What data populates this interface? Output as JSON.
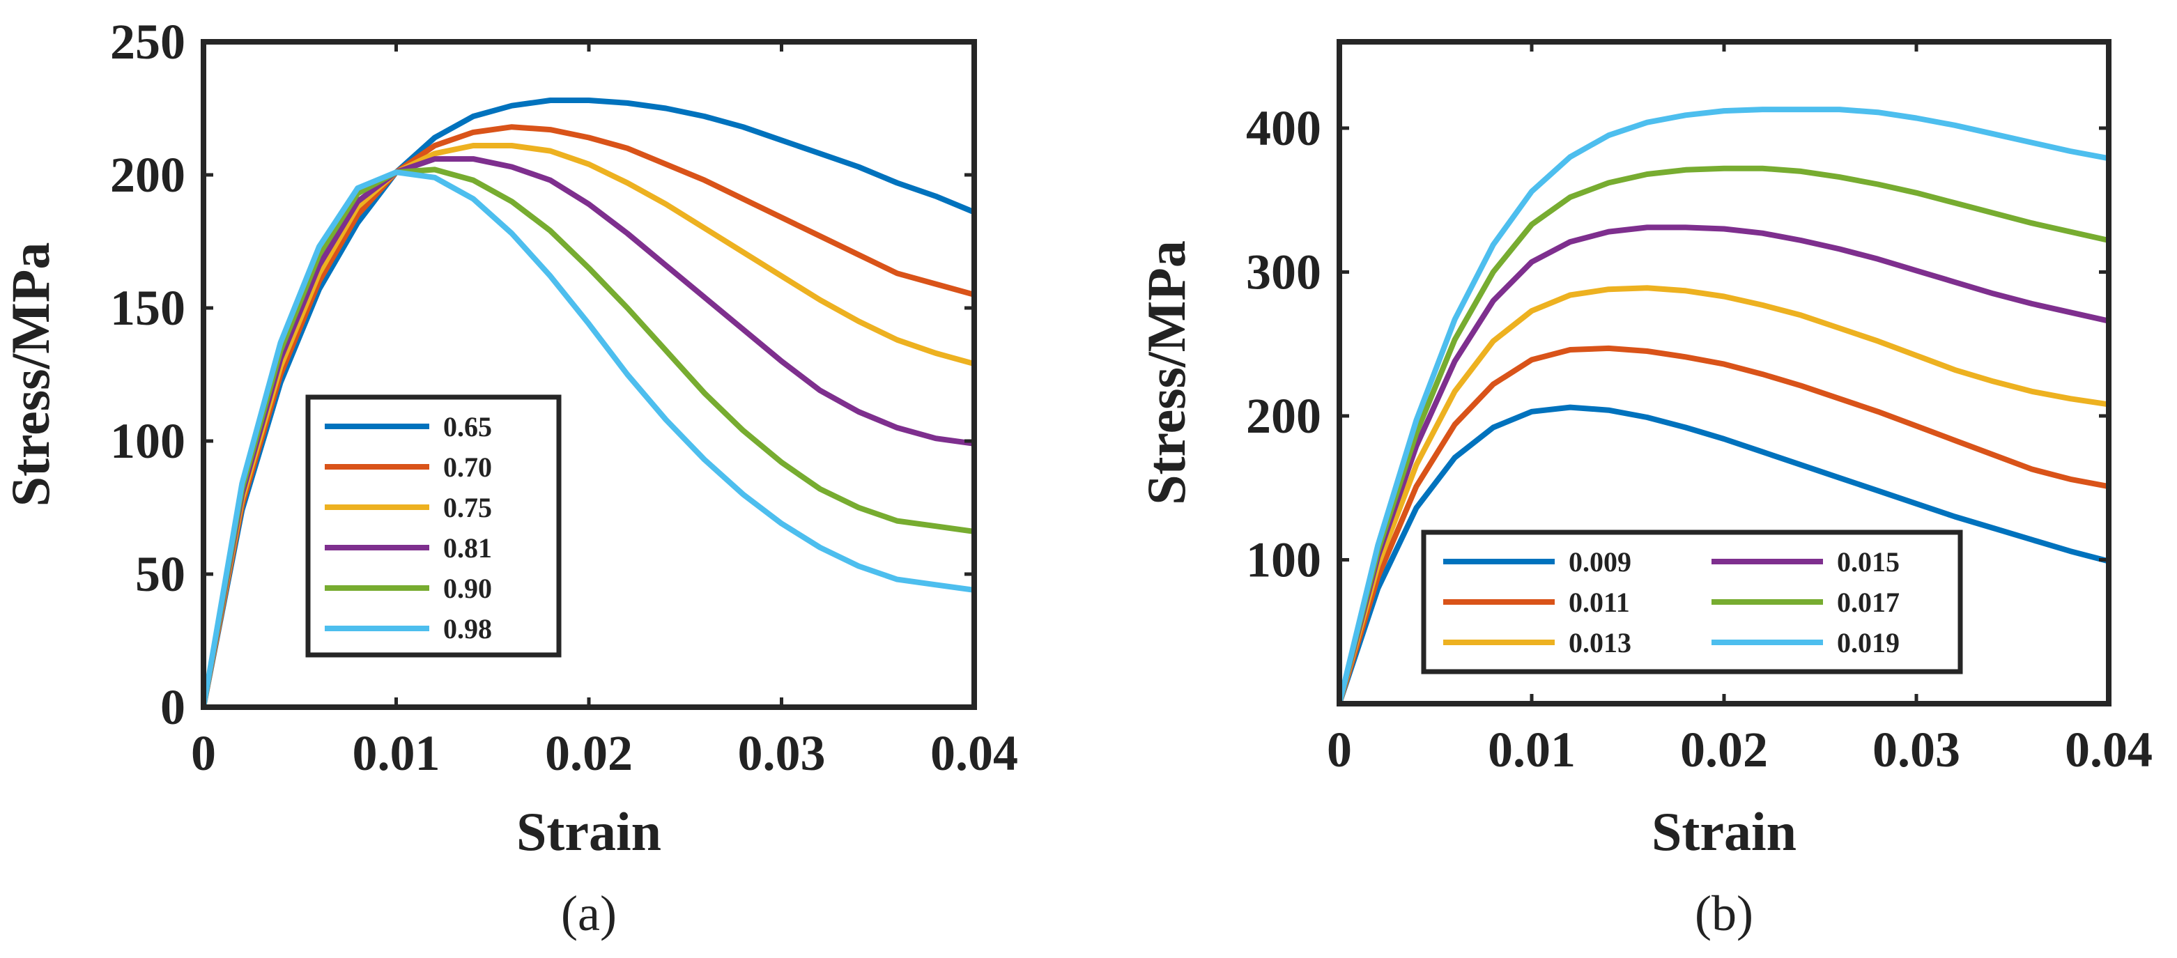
{
  "chart_data": [
    {
      "type": "line",
      "panel_label": "(a)",
      "title": "",
      "xlabel": "Strain",
      "ylabel": "Stress/MPa",
      "xlim": [
        0,
        0.04
      ],
      "ylim": [
        0,
        250
      ],
      "xticks": [
        0,
        0.01,
        0.02,
        0.03,
        0.04
      ],
      "xtick_labels": [
        "0",
        "0.01",
        "0.02",
        "0.03",
        "0.04"
      ],
      "yticks": [
        0,
        50,
        100,
        150,
        200,
        250
      ],
      "ytick_labels": [
        "0",
        "50",
        "100",
        "150",
        "200",
        "250"
      ],
      "legend_position": "lower-left",
      "legend_columns": 1,
      "grid": false,
      "x": [
        0,
        0.002,
        0.004,
        0.006,
        0.008,
        0.01,
        0.012,
        0.014,
        0.016,
        0.018,
        0.02,
        0.022,
        0.024,
        0.026,
        0.028,
        0.03,
        0.032,
        0.034,
        0.036,
        0.038,
        0.04
      ],
      "series": [
        {
          "name": "0.65",
          "color": "#0072BD",
          "values": [
            0,
            74,
            122,
            157,
            182,
            201,
            214,
            222,
            226,
            228,
            228,
            227,
            225,
            222,
            218,
            213,
            208,
            203,
            197,
            192,
            186
          ]
        },
        {
          "name": "0.70",
          "color": "#D95319",
          "values": [
            0,
            76,
            125,
            160,
            185,
            201,
            211,
            216,
            218,
            217,
            214,
            210,
            204,
            198,
            191,
            184,
            177,
            170,
            163,
            159,
            155
          ]
        },
        {
          "name": "0.75",
          "color": "#EDB120",
          "values": [
            0,
            78,
            128,
            163,
            188,
            201,
            208,
            211,
            211,
            209,
            204,
            197,
            189,
            180,
            171,
            162,
            153,
            145,
            138,
            133,
            129
          ]
        },
        {
          "name": "0.81",
          "color": "#7E2F8E",
          "values": [
            0,
            80,
            131,
            166,
            190,
            201,
            206,
            206,
            203,
            198,
            189,
            178,
            166,
            154,
            142,
            130,
            119,
            111,
            105,
            101,
            99
          ]
        },
        {
          "name": "0.90",
          "color": "#77AC30",
          "values": [
            0,
            82,
            134,
            170,
            193,
            201,
            202,
            198,
            190,
            179,
            165,
            150,
            134,
            118,
            104,
            92,
            82,
            75,
            70,
            68,
            66
          ]
        },
        {
          "name": "0.98",
          "color": "#4DBEEE",
          "values": [
            0,
            84,
            137,
            173,
            195,
            201,
            199,
            191,
            178,
            162,
            144,
            125,
            108,
            93,
            80,
            69,
            60,
            53,
            48,
            46,
            44
          ]
        }
      ]
    },
    {
      "type": "line",
      "panel_label": "(b)",
      "title": "",
      "xlabel": "Strain",
      "ylabel": "Stress/MPa",
      "xlim": [
        0,
        0.04
      ],
      "ylim": [
        0,
        460
      ],
      "xticks": [
        0,
        0.01,
        0.02,
        0.03,
        0.04
      ],
      "xtick_labels": [
        "0",
        "0.01",
        "0.02",
        "0.03",
        "0.04"
      ],
      "yticks": [
        100,
        200,
        300,
        400
      ],
      "ytick_labels": [
        "100",
        "200",
        "300",
        "400"
      ],
      "legend_position": "bottom-center",
      "legend_columns": 2,
      "grid": false,
      "x": [
        0,
        0.002,
        0.004,
        0.006,
        0.008,
        0.01,
        0.012,
        0.014,
        0.016,
        0.018,
        0.02,
        0.022,
        0.024,
        0.026,
        0.028,
        0.03,
        0.032,
        0.034,
        0.036,
        0.038,
        0.04
      ],
      "series": [
        {
          "name": "0.009",
          "color": "#0072BD",
          "values": [
            0,
            80,
            136,
            171,
            192,
            203,
            206,
            204,
            199,
            192,
            184,
            175,
            166,
            157,
            148,
            139,
            130,
            122,
            114,
            106,
            99
          ]
        },
        {
          "name": "0.011",
          "color": "#D95319",
          "values": [
            0,
            88,
            151,
            194,
            222,
            239,
            246,
            247,
            245,
            241,
            236,
            229,
            221,
            212,
            203,
            193,
            183,
            173,
            163,
            156,
            151
          ]
        },
        {
          "name": "0.013",
          "color": "#EDB120",
          "values": [
            0,
            96,
            166,
            217,
            252,
            273,
            284,
            288,
            289,
            287,
            283,
            277,
            270,
            261,
            252,
            242,
            232,
            224,
            217,
            212,
            208
          ]
        },
        {
          "name": "0.015",
          "color": "#7E2F8E",
          "values": [
            0,
            102,
            179,
            238,
            280,
            307,
            321,
            328,
            331,
            331,
            330,
            327,
            322,
            316,
            309,
            301,
            293,
            285,
            278,
            272,
            266
          ]
        },
        {
          "name": "0.017",
          "color": "#77AC30",
          "values": [
            0,
            106,
            188,
            253,
            300,
            333,
            352,
            362,
            368,
            371,
            372,
            372,
            370,
            366,
            361,
            355,
            348,
            341,
            334,
            328,
            322
          ]
        },
        {
          "name": "0.019",
          "color": "#4DBEEE",
          "values": [
            0,
            110,
            197,
            267,
            319,
            356,
            380,
            395,
            404,
            409,
            412,
            413,
            413,
            413,
            411,
            407,
            402,
            396,
            390,
            384,
            379
          ]
        }
      ]
    }
  ]
}
